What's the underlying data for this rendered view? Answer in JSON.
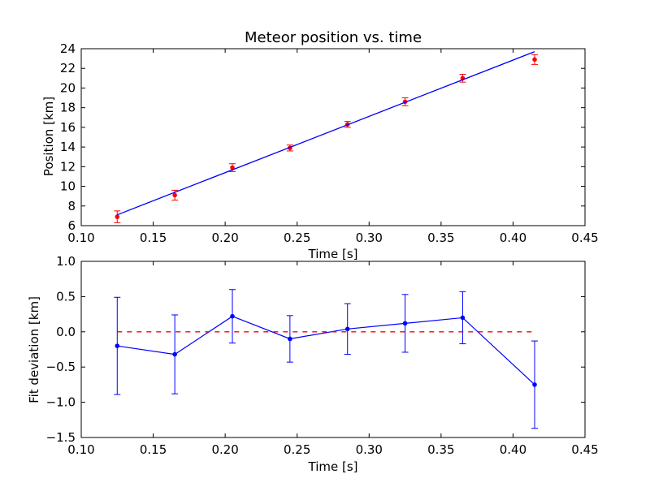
{
  "chart_data": [
    {
      "type": "scatter",
      "title": "Meteor position vs. time",
      "xlabel": "Time [s]",
      "ylabel": "Position [km]",
      "xlim": [
        0.1,
        0.45
      ],
      "ylim": [
        6,
        24
      ],
      "xticks": [
        "0.10",
        "0.15",
        "0.20",
        "0.25",
        "0.30",
        "0.35",
        "0.40",
        "0.45"
      ],
      "yticks": [
        "6",
        "8",
        "10",
        "12",
        "14",
        "16",
        "18",
        "20",
        "22",
        "24"
      ],
      "series": [
        {
          "kind": "errorbar-points",
          "color": "#ff0000",
          "x": [
            0.125,
            0.165,
            0.205,
            0.245,
            0.285,
            0.325,
            0.365,
            0.415
          ],
          "y": [
            6.9,
            9.1,
            11.9,
            13.9,
            16.3,
            18.6,
            21.0,
            22.9
          ],
          "yerr": [
            0.6,
            0.5,
            0.4,
            0.3,
            0.3,
            0.4,
            0.4,
            0.5
          ]
        },
        {
          "kind": "fit-line",
          "color": "#0000ff",
          "x": [
            0.125,
            0.415
          ],
          "y": [
            7.1,
            23.7
          ]
        }
      ]
    },
    {
      "type": "line",
      "title": "",
      "xlabel": "Time [s]",
      "ylabel": "Fit deviation [km]",
      "xlim": [
        0.1,
        0.45
      ],
      "ylim": [
        -1.5,
        1.0
      ],
      "xticks": [
        "0.10",
        "0.15",
        "0.20",
        "0.25",
        "0.30",
        "0.35",
        "0.40",
        "0.45"
      ],
      "yticks": [
        "−1.5",
        "−1.0",
        "−0.5",
        "0.0",
        "0.5",
        "1.0"
      ],
      "series": [
        {
          "kind": "errorbar-line",
          "color": "#0000ff",
          "x": [
            0.125,
            0.165,
            0.205,
            0.245,
            0.285,
            0.325,
            0.365,
            0.415
          ],
          "y": [
            -0.2,
            -0.32,
            0.22,
            -0.1,
            0.04,
            0.12,
            0.2,
            -0.75
          ],
          "yerr": [
            0.69,
            0.56,
            0.38,
            0.33,
            0.36,
            0.41,
            0.37,
            0.62
          ]
        },
        {
          "kind": "reference-line",
          "color": "#ff0000",
          "dashed": true,
          "x": [
            0.125,
            0.415
          ],
          "y": [
            0.0,
            0.0
          ]
        }
      ]
    }
  ]
}
